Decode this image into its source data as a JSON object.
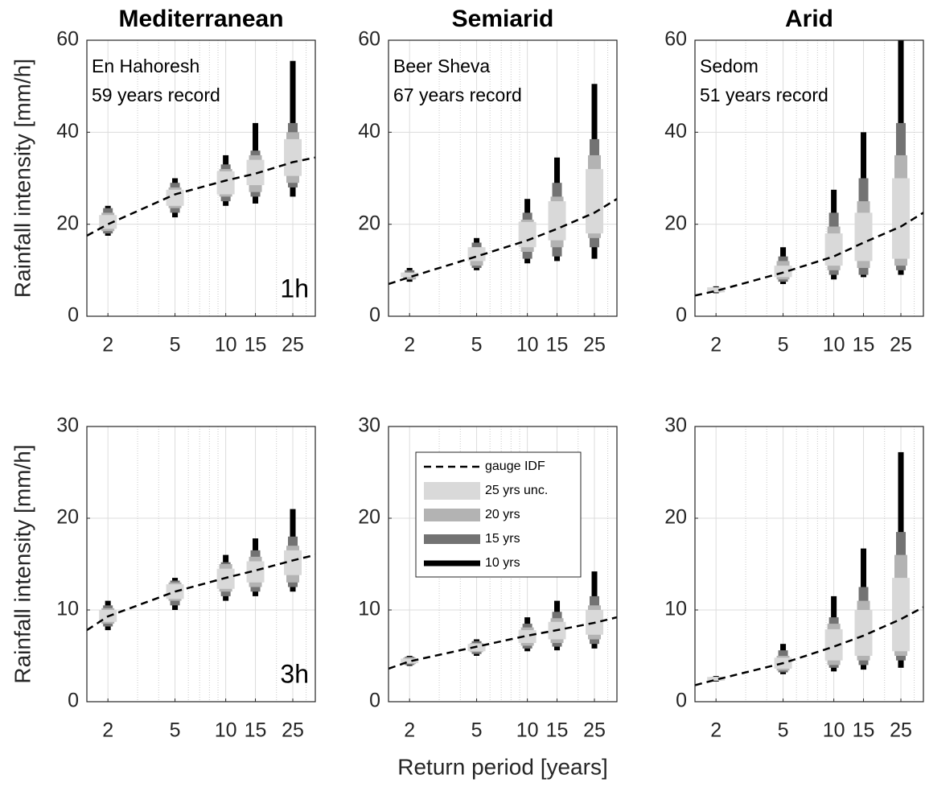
{
  "chart_data": [
    {
      "type": "range",
      "title": "Mediterranean",
      "station": "En Hahoresh",
      "record": "59 years record",
      "duration": "1h",
      "ylabel": "Rainfall intensity [mm/h]",
      "x": [
        2,
        5,
        10,
        15,
        25
      ],
      "xlim": [
        1.5,
        34
      ],
      "xticks": [
        2,
        5,
        10,
        15,
        25
      ],
      "xminor": [
        3,
        4,
        6,
        7,
        8,
        9,
        20,
        30
      ],
      "xlog": true,
      "ylim": [
        0,
        60
      ],
      "yticks": [
        0,
        20,
        40,
        60
      ],
      "grid": true,
      "series": [
        {
          "color": "#000000",
          "dashed": true,
          "x": [
            1.5,
            2,
            5,
            10,
            15,
            25,
            34
          ],
          "values": [
            17.5,
            20,
            26.5,
            29.5,
            31,
            33.5,
            34.5
          ]
        },
        {
          "color": "#d9d9d9",
          "low": [
            19,
            24,
            26.5,
            28.5,
            30.5
          ],
          "high": [
            22,
            27.5,
            31.5,
            34,
            38.5
          ]
        },
        {
          "color": "#b3b3b3",
          "low": [
            18.5,
            23.5,
            26,
            27,
            29
          ],
          "high": [
            22.5,
            28,
            32,
            35,
            40
          ]
        },
        {
          "color": "#737373",
          "low": [
            18,
            22.5,
            25,
            26,
            28
          ],
          "high": [
            23.5,
            29,
            33,
            36,
            42
          ]
        },
        {
          "color": "#000000",
          "low": [
            17.5,
            21.5,
            24,
            24.5,
            26
          ],
          "high": [
            24,
            30,
            35,
            42,
            55.5
          ]
        }
      ]
    },
    {
      "type": "range",
      "title": "Semiarid",
      "station": "Beer Sheva",
      "record": "67 years record",
      "x": [
        2,
        5,
        10,
        15,
        25
      ],
      "xlim": [
        1.5,
        34
      ],
      "xticks": [
        2,
        5,
        10,
        15,
        25
      ],
      "xminor": [
        3,
        4,
        6,
        7,
        8,
        9,
        20,
        30
      ],
      "xlog": true,
      "ylim": [
        0,
        60
      ],
      "yticks": [
        0,
        20,
        40,
        60
      ],
      "grid": true,
      "series": [
        {
          "color": "#000000",
          "dashed": true,
          "x": [
            1.5,
            2,
            5,
            10,
            15,
            25,
            34
          ],
          "values": [
            7,
            8.5,
            13,
            16.5,
            19,
            22.5,
            25.5
          ]
        },
        {
          "color": "#d9d9d9",
          "low": [
            8.5,
            12,
            15,
            16.5,
            18
          ],
          "high": [
            9.5,
            15,
            20.5,
            25,
            32
          ]
        },
        {
          "color": "#b3b3b3",
          "low": [
            8,
            11,
            14,
            15,
            17
          ],
          "high": [
            9.5,
            15,
            21,
            26,
            35
          ]
        },
        {
          "color": "#737373",
          "low": [
            8,
            10.5,
            12.5,
            13,
            15
          ],
          "high": [
            10,
            16,
            22.5,
            29,
            38.5
          ]
        },
        {
          "color": "#000000",
          "low": [
            7.5,
            10,
            11.5,
            12,
            12.5
          ],
          "high": [
            10.5,
            17,
            25.5,
            34.5,
            50.5
          ]
        }
      ]
    },
    {
      "type": "range",
      "title": "Arid",
      "station": "Sedom",
      "record": "51 years record",
      "x": [
        2,
        5,
        10,
        15,
        25
      ],
      "xlim": [
        1.5,
        34
      ],
      "xticks": [
        2,
        5,
        10,
        15,
        25
      ],
      "xminor": [
        3,
        4,
        6,
        7,
        8,
        9,
        20,
        30
      ],
      "xlog": true,
      "ylim": [
        0,
        60
      ],
      "yticks": [
        0,
        20,
        40,
        60
      ],
      "grid": true,
      "series": [
        {
          "color": "#000000",
          "dashed": true,
          "x": [
            1.5,
            2,
            5,
            10,
            15,
            25,
            34
          ],
          "values": [
            4.5,
            5.5,
            9.5,
            13,
            16,
            19.5,
            22.5
          ]
        },
        {
          "color": "#d9d9d9",
          "low": [
            5.2,
            8.5,
            11,
            12,
            12.5
          ],
          "high": [
            6.3,
            11,
            18,
            22.5,
            30
          ]
        },
        {
          "color": "#b3b3b3",
          "low": [
            5.2,
            8,
            10,
            10.5,
            11
          ],
          "high": [
            6.3,
            12,
            19.5,
            25,
            35
          ]
        },
        {
          "color": "#737373",
          "low": [
            5.2,
            7.5,
            9,
            9,
            10
          ],
          "high": [
            6.3,
            13,
            22.5,
            30,
            42
          ]
        },
        {
          "color": "#000000",
          "low": [
            5,
            7,
            8,
            8.5,
            9
          ],
          "high": [
            6.5,
            15,
            27.5,
            40,
            60
          ]
        }
      ]
    },
    {
      "type": "range",
      "duration": "3h",
      "ylabel": "Rainfall intensity [mm/h]",
      "x": [
        2,
        5,
        10,
        15,
        25
      ],
      "xlim": [
        1.5,
        34
      ],
      "xticks": [
        2,
        5,
        10,
        15,
        25
      ],
      "xminor": [
        3,
        4,
        6,
        7,
        8,
        9,
        20,
        30
      ],
      "xlog": true,
      "ylim": [
        0,
        30
      ],
      "yticks": [
        0,
        10,
        20,
        30
      ],
      "grid": true,
      "series": [
        {
          "color": "#000000",
          "dashed": true,
          "x": [
            1.5,
            2,
            5,
            10,
            15,
            25,
            34
          ],
          "values": [
            7.8,
            9.3,
            12,
            13.5,
            14.3,
            15.4,
            16
          ]
        },
        {
          "color": "#d9d9d9",
          "low": [
            8.7,
            11.2,
            12.3,
            13,
            13.8
          ],
          "high": [
            10,
            12.8,
            14.5,
            15.3,
            16.5
          ]
        },
        {
          "color": "#b3b3b3",
          "low": [
            8.5,
            11,
            12,
            12.5,
            13
          ],
          "high": [
            10.2,
            13,
            15,
            15.8,
            17
          ]
        },
        {
          "color": "#737373",
          "low": [
            8.2,
            10.5,
            11.5,
            12,
            12.5
          ],
          "high": [
            10.5,
            13.2,
            15.2,
            16.5,
            18
          ]
        },
        {
          "color": "#000000",
          "low": [
            7.8,
            10,
            11,
            11.5,
            12
          ],
          "high": [
            11,
            13.5,
            16,
            17.8,
            21
          ]
        }
      ]
    },
    {
      "type": "range",
      "xlabel": "Return period [years]",
      "legend": "top-left",
      "x": [
        2,
        5,
        10,
        15,
        25
      ],
      "xlim": [
        1.5,
        34
      ],
      "xticks": [
        2,
        5,
        10,
        15,
        25
      ],
      "xminor": [
        3,
        4,
        6,
        7,
        8,
        9,
        20,
        30
      ],
      "xlog": true,
      "ylim": [
        0,
        30
      ],
      "yticks": [
        0,
        10,
        20,
        30
      ],
      "grid": true,
      "series": [
        {
          "name": "gauge IDF",
          "color": "#000000",
          "dashed": true,
          "x": [
            1.5,
            2,
            5,
            10,
            15,
            25,
            34
          ],
          "values": [
            3.6,
            4.4,
            6,
            7.2,
            7.8,
            8.6,
            9.2
          ]
        },
        {
          "name": "25 yrs unc.",
          "color": "#d9d9d9",
          "low": [
            4.2,
            5.5,
            6.4,
            6.8,
            7.3
          ],
          "high": [
            4.7,
            6.3,
            7.8,
            8.7,
            10
          ]
        },
        {
          "name": "20 yrs",
          "color": "#b3b3b3",
          "low": [
            4.1,
            5.4,
            6.1,
            6.4,
            6.8
          ],
          "high": [
            4.8,
            6.4,
            8.1,
            9.1,
            10.5
          ]
        },
        {
          "name": "15 yrs",
          "color": "#737373",
          "low": [
            4,
            5.2,
            5.8,
            6,
            6.3
          ],
          "high": [
            4.9,
            6.6,
            8.5,
            9.8,
            11.5
          ]
        },
        {
          "name": "10 yrs",
          "color": "#000000",
          "low": [
            3.9,
            5,
            5.5,
            5.6,
            5.8
          ],
          "high": [
            5,
            6.8,
            9.2,
            11,
            14.2
          ]
        }
      ]
    },
    {
      "type": "range",
      "x": [
        2,
        5,
        10,
        15,
        25
      ],
      "xlim": [
        1.5,
        34
      ],
      "xticks": [
        2,
        5,
        10,
        15,
        25
      ],
      "xminor": [
        3,
        4,
        6,
        7,
        8,
        9,
        20,
        30
      ],
      "xlog": true,
      "ylim": [
        0,
        30
      ],
      "yticks": [
        0,
        10,
        20,
        30
      ],
      "grid": true,
      "series": [
        {
          "color": "#000000",
          "dashed": true,
          "x": [
            1.5,
            2,
            5,
            10,
            15,
            25,
            34
          ],
          "values": [
            1.8,
            2.4,
            4.2,
            6,
            7.2,
            9,
            10.3
          ]
        },
        {
          "color": "#d9d9d9",
          "low": [
            2.3,
            3.6,
            4.5,
            5,
            5.5
          ],
          "high": [
            2.7,
            4.8,
            7.9,
            10,
            13.5
          ]
        },
        {
          "color": "#b3b3b3",
          "low": [
            2.3,
            3.4,
            4,
            4.5,
            5
          ],
          "high": [
            2.7,
            5,
            8.5,
            11,
            16
          ]
        },
        {
          "color": "#737373",
          "low": [
            2.3,
            3.2,
            3.7,
            4,
            4.5
          ],
          "high": [
            2.7,
            5.6,
            9.2,
            12.5,
            18.5
          ]
        },
        {
          "color": "#000000",
          "low": [
            2.2,
            3,
            3.3,
            3.5,
            3.7
          ],
          "high": [
            2.8,
            6.3,
            11.5,
            16.7,
            27.2
          ]
        }
      ]
    }
  ]
}
